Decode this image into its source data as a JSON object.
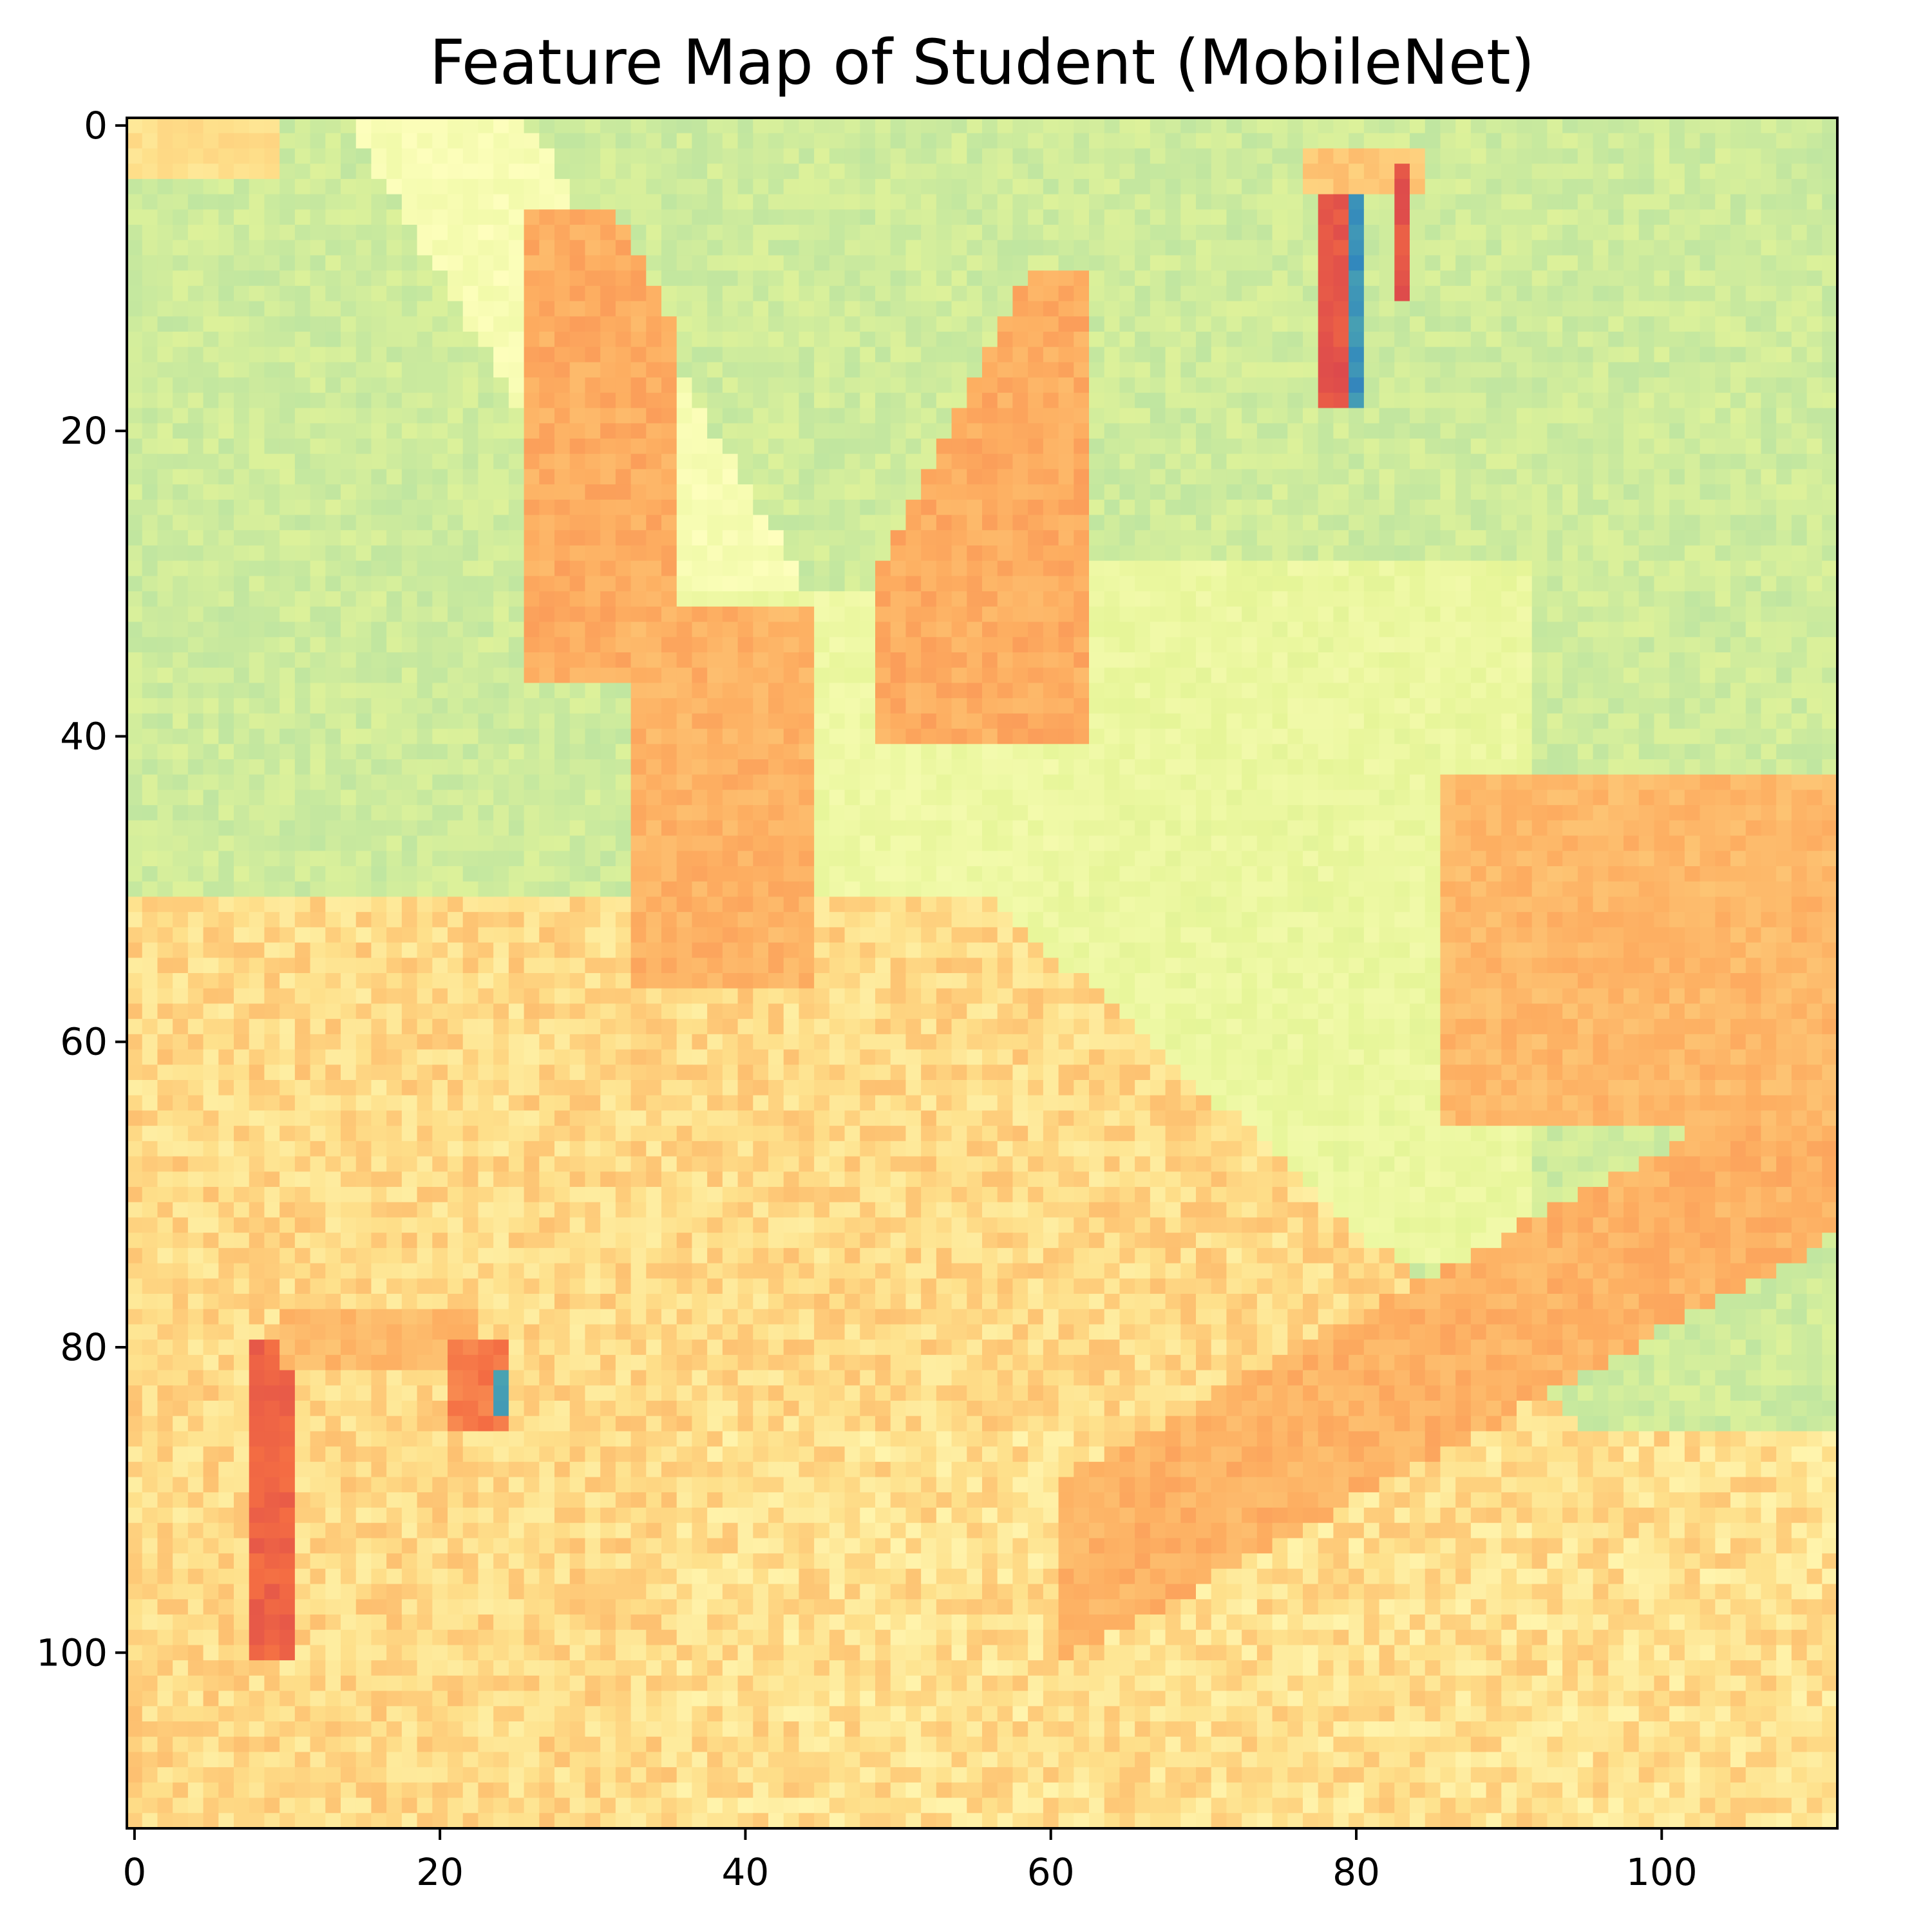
{
  "chart_data": {
    "type": "heatmap",
    "title": "Feature Map of Student (MobileNet)",
    "xlabel": "",
    "ylabel": "",
    "colormap": "Spectral",
    "grid": false,
    "xlim": [
      -0.5,
      111.5
    ],
    "ylim": [
      111.5,
      -0.5
    ],
    "shape": [
      112,
      112
    ],
    "x_ticks": [
      0,
      20,
      40,
      60,
      80,
      100
    ],
    "y_ticks": [
      0,
      20,
      40,
      60,
      80,
      100
    ],
    "x_tick_labels": [
      "0",
      "20",
      "40",
      "60",
      "80",
      "100"
    ],
    "y_tick_labels": [
      "0",
      "20",
      "40",
      "60",
      "80",
      "100"
    ],
    "colors": {
      "background_green": "#b3df9b",
      "light_yellow": "#f7fcb1",
      "orange": "#f9a15b",
      "red": "#d9414a",
      "blue": "#4f7fb9",
      "pale_orange": "#fdd385"
    }
  }
}
